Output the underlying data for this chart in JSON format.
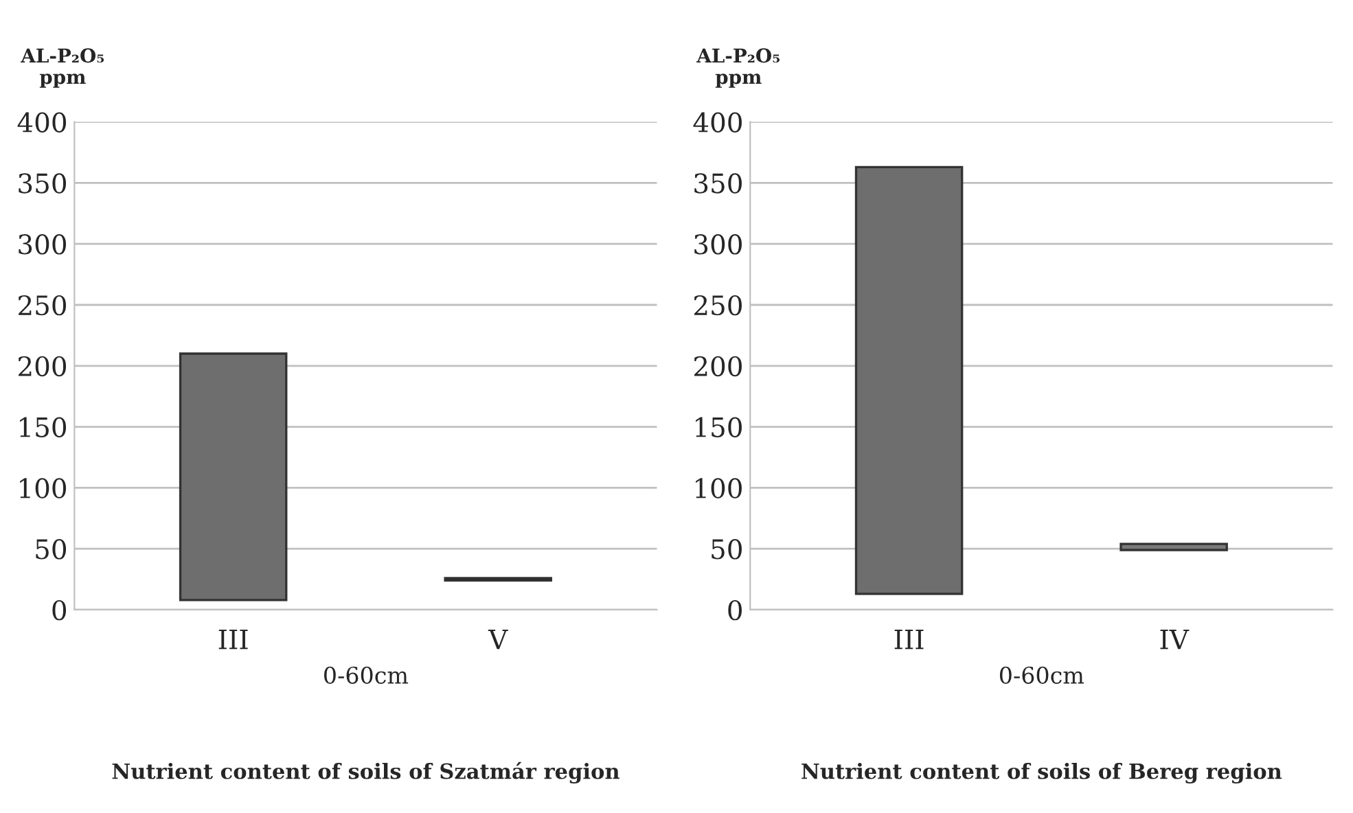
{
  "chart_data": [
    {
      "type": "bar",
      "title": "Nutrient content of soils of Szatmár region",
      "xlabel": "0-60cm",
      "ylabel": "AL-P₂O₅\nppm",
      "categories": [
        "III",
        "V"
      ],
      "values": [
        202,
        2
      ],
      "base": [
        8,
        24
      ],
      "colors": [
        "#6e6e6e",
        "#000000"
      ],
      "ylim": [
        0,
        400
      ],
      "yticks": [
        0,
        50,
        100,
        150,
        200,
        250,
        300,
        350,
        400
      ],
      "grid": "y"
    },
    {
      "type": "bar",
      "title": "Nutrient content of soils of Bereg region",
      "xlabel": "0-60cm",
      "ylabel": "AL-P₂O₅\nppm",
      "categories": [
        "III",
        "IV"
      ],
      "values": [
        350,
        5
      ],
      "base": [
        13,
        49
      ],
      "colors": [
        "#6e6e6e",
        "#7a7a7a"
      ],
      "ylim": [
        0,
        400
      ],
      "yticks": [
        0,
        50,
        100,
        150,
        200,
        250,
        300,
        350,
        400
      ],
      "grid": "y"
    }
  ]
}
